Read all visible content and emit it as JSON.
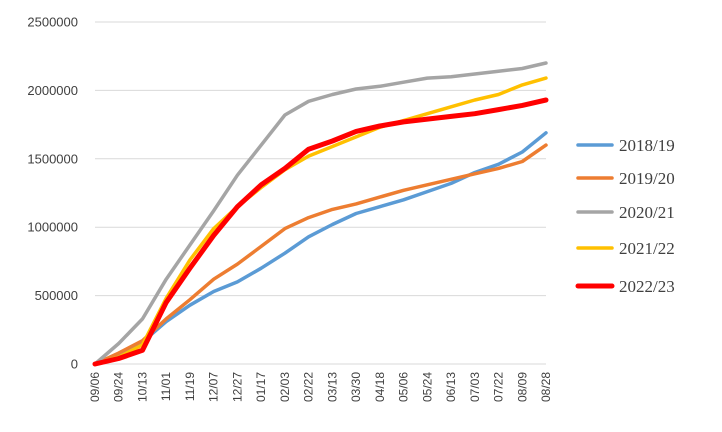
{
  "chart_data": {
    "type": "line",
    "title": "",
    "xlabel": "",
    "ylabel": "",
    "ylim": [
      0,
      2500000
    ],
    "yticks": [
      0,
      500000,
      1000000,
      1500000,
      2000000,
      2500000
    ],
    "ytick_labels": [
      "0",
      "500000",
      "1000000",
      "1500000",
      "2000000",
      "2500000"
    ],
    "xtick_labels": [
      "09/06",
      "09/24",
      "10/13",
      "11/01",
      "11/19",
      "12/07",
      "12/27",
      "01/17",
      "02/03",
      "02/22",
      "03/13",
      "03/30",
      "04/18",
      "05/06",
      "05/24",
      "06/13",
      "07/03",
      "07/22",
      "08/09",
      "08/28"
    ],
    "grid": "horizontal",
    "legend_position": "right",
    "series": [
      {
        "name": "2018/19",
        "color": "#5b9bd5",
        "values": [
          0,
          60000,
          160000,
          310000,
          430000,
          530000,
          600000,
          700000,
          810000,
          930000,
          1020000,
          1100000,
          1150000,
          1200000,
          1260000,
          1320000,
          1400000,
          1460000,
          1550000,
          1690000
        ]
      },
      {
        "name": "2019/20",
        "color": "#ed7d31",
        "values": [
          0,
          80000,
          170000,
          330000,
          470000,
          620000,
          730000,
          860000,
          990000,
          1070000,
          1130000,
          1170000,
          1220000,
          1270000,
          1310000,
          1350000,
          1390000,
          1430000,
          1480000,
          1600000
        ]
      },
      {
        "name": "2020/21",
        "color": "#a5a5a5",
        "values": [
          0,
          150000,
          330000,
          620000,
          870000,
          1120000,
          1380000,
          1600000,
          1820000,
          1920000,
          1970000,
          2010000,
          2030000,
          2060000,
          2090000,
          2100000,
          2120000,
          2140000,
          2160000,
          2200000
        ]
      },
      {
        "name": "2021/22",
        "color": "#ffc000",
        "values": [
          0,
          50000,
          140000,
          480000,
          760000,
          990000,
          1150000,
          1290000,
          1420000,
          1520000,
          1590000,
          1660000,
          1730000,
          1780000,
          1830000,
          1880000,
          1930000,
          1970000,
          2040000,
          2090000
        ]
      },
      {
        "name": "2022/23",
        "color": "#ff0000",
        "values": [
          0,
          40000,
          100000,
          450000,
          700000,
          940000,
          1150000,
          1310000,
          1430000,
          1570000,
          1630000,
          1700000,
          1740000,
          1770000,
          1790000,
          1810000,
          1830000,
          1860000,
          1890000,
          1930000
        ]
      }
    ]
  }
}
